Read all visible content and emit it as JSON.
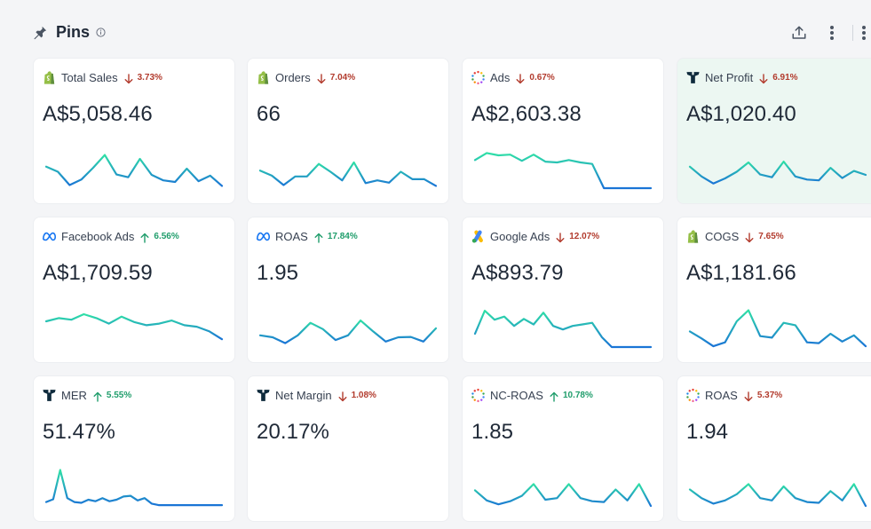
{
  "header": {
    "title": "Pins"
  },
  "colors": {
    "down": "#b23b2d",
    "up": "#1f9d6b",
    "line_start": "#2fe0a6",
    "line_end": "#1a74d6"
  },
  "cards": [
    {
      "logo": "shopify-icon",
      "label": "Total Sales",
      "trend": "down",
      "pct": "3.73%",
      "value": "A$5,058.46",
      "spark": [
        0.55,
        0.42,
        0.08,
        0.22,
        0.52,
        0.85,
        0.35,
        0.28,
        0.75,
        0.34,
        0.2,
        0.16,
        0.5,
        0.18,
        0.32,
        0.06
      ]
    },
    {
      "logo": "shopify-icon",
      "label": "Orders",
      "trend": "down",
      "pct": "7.04%",
      "value": "66",
      "spark": [
        0.45,
        0.32,
        0.08,
        0.3,
        0.3,
        0.62,
        0.42,
        0.2,
        0.66,
        0.13,
        0.2,
        0.14,
        0.42,
        0.23,
        0.23,
        0.06
      ]
    },
    {
      "logo": "triple-whale-icon",
      "label": "Ads",
      "trend": "down",
      "pct": "0.67%",
      "value": "A$2,603.38",
      "spark": [
        0.72,
        0.9,
        0.84,
        0.86,
        0.7,
        0.86,
        0.68,
        0.66,
        0.72,
        0.66,
        0.62,
        0.0,
        0.0,
        0.0,
        0.0,
        0.0
      ]
    },
    {
      "logo": "trident-icon",
      "label": "Net Profit",
      "trend": "down",
      "pct": "6.91%",
      "value": "A$1,020.40",
      "spark": [
        0.55,
        0.3,
        0.12,
        0.25,
        0.42,
        0.66,
        0.35,
        0.28,
        0.68,
        0.3,
        0.22,
        0.2,
        0.52,
        0.26,
        0.44,
        0.34
      ]
    },
    {
      "logo": "meta-icon",
      "label": "Facebook Ads",
      "trend": "up",
      "pct": "6.56%",
      "value": "A$1,709.59",
      "spark": [
        0.66,
        0.74,
        0.7,
        0.84,
        0.74,
        0.6,
        0.78,
        0.64,
        0.56,
        0.6,
        0.68,
        0.56,
        0.52,
        0.4,
        0.2
      ]
    },
    {
      "logo": "meta-icon",
      "label": "ROAS",
      "trend": "up",
      "pct": "17.84%",
      "value": "1.95",
      "spark": [
        0.3,
        0.25,
        0.1,
        0.3,
        0.62,
        0.46,
        0.18,
        0.3,
        0.68,
        0.4,
        0.14,
        0.25,
        0.26,
        0.14,
        0.48
      ]
    },
    {
      "logo": "google-ads-icon",
      "label": "Google Ads",
      "trend": "down",
      "pct": "12.07%",
      "value": "A$893.79",
      "spark": [
        0.34,
        0.93,
        0.7,
        0.78,
        0.54,
        0.72,
        0.58,
        0.88,
        0.54,
        0.45,
        0.54,
        0.58,
        0.62,
        0.25,
        0.0,
        0.0,
        0.0,
        0.0,
        0.0
      ]
    },
    {
      "logo": "shopify-icon",
      "label": "COGS",
      "trend": "down",
      "pct": "7.65%",
      "value": "A$1,181.66",
      "spark": [
        0.4,
        0.22,
        0.02,
        0.12,
        0.66,
        0.94,
        0.28,
        0.24,
        0.62,
        0.56,
        0.12,
        0.1,
        0.34,
        0.14,
        0.3,
        0.02
      ]
    },
    {
      "logo": "trident-icon",
      "label": "MER",
      "trend": "up",
      "pct": "5.55%",
      "value": "51.47%",
      "spark": [
        0.1,
        0.17,
        0.92,
        0.2,
        0.1,
        0.08,
        0.16,
        0.12,
        0.2,
        0.12,
        0.16,
        0.24,
        0.26,
        0.14,
        0.2,
        0.06,
        0.02,
        0.02,
        0.02,
        0.02,
        0.02,
        0.02,
        0.02,
        0.02,
        0.02,
        0.02
      ]
    },
    {
      "logo": "trident-icon",
      "label": "Net Margin",
      "trend": "down",
      "pct": "1.08%",
      "value": "20.17%",
      "spark": []
    },
    {
      "logo": "triple-whale-icon",
      "label": "NC-ROAS",
      "trend": "up",
      "pct": "10.78%",
      "value": "1.85",
      "spark": [
        0.4,
        0.14,
        0.04,
        0.12,
        0.26,
        0.56,
        0.16,
        0.2,
        0.56,
        0.2,
        0.12,
        0.1,
        0.42,
        0.14,
        0.56,
        0.0
      ]
    },
    {
      "logo": "triple-whale-icon",
      "label": "ROAS",
      "trend": "down",
      "pct": "5.37%",
      "value": "1.94",
      "spark": [
        0.42,
        0.2,
        0.06,
        0.14,
        0.3,
        0.56,
        0.2,
        0.14,
        0.5,
        0.2,
        0.1,
        0.08,
        0.38,
        0.14,
        0.56,
        0.0
      ]
    }
  ]
}
